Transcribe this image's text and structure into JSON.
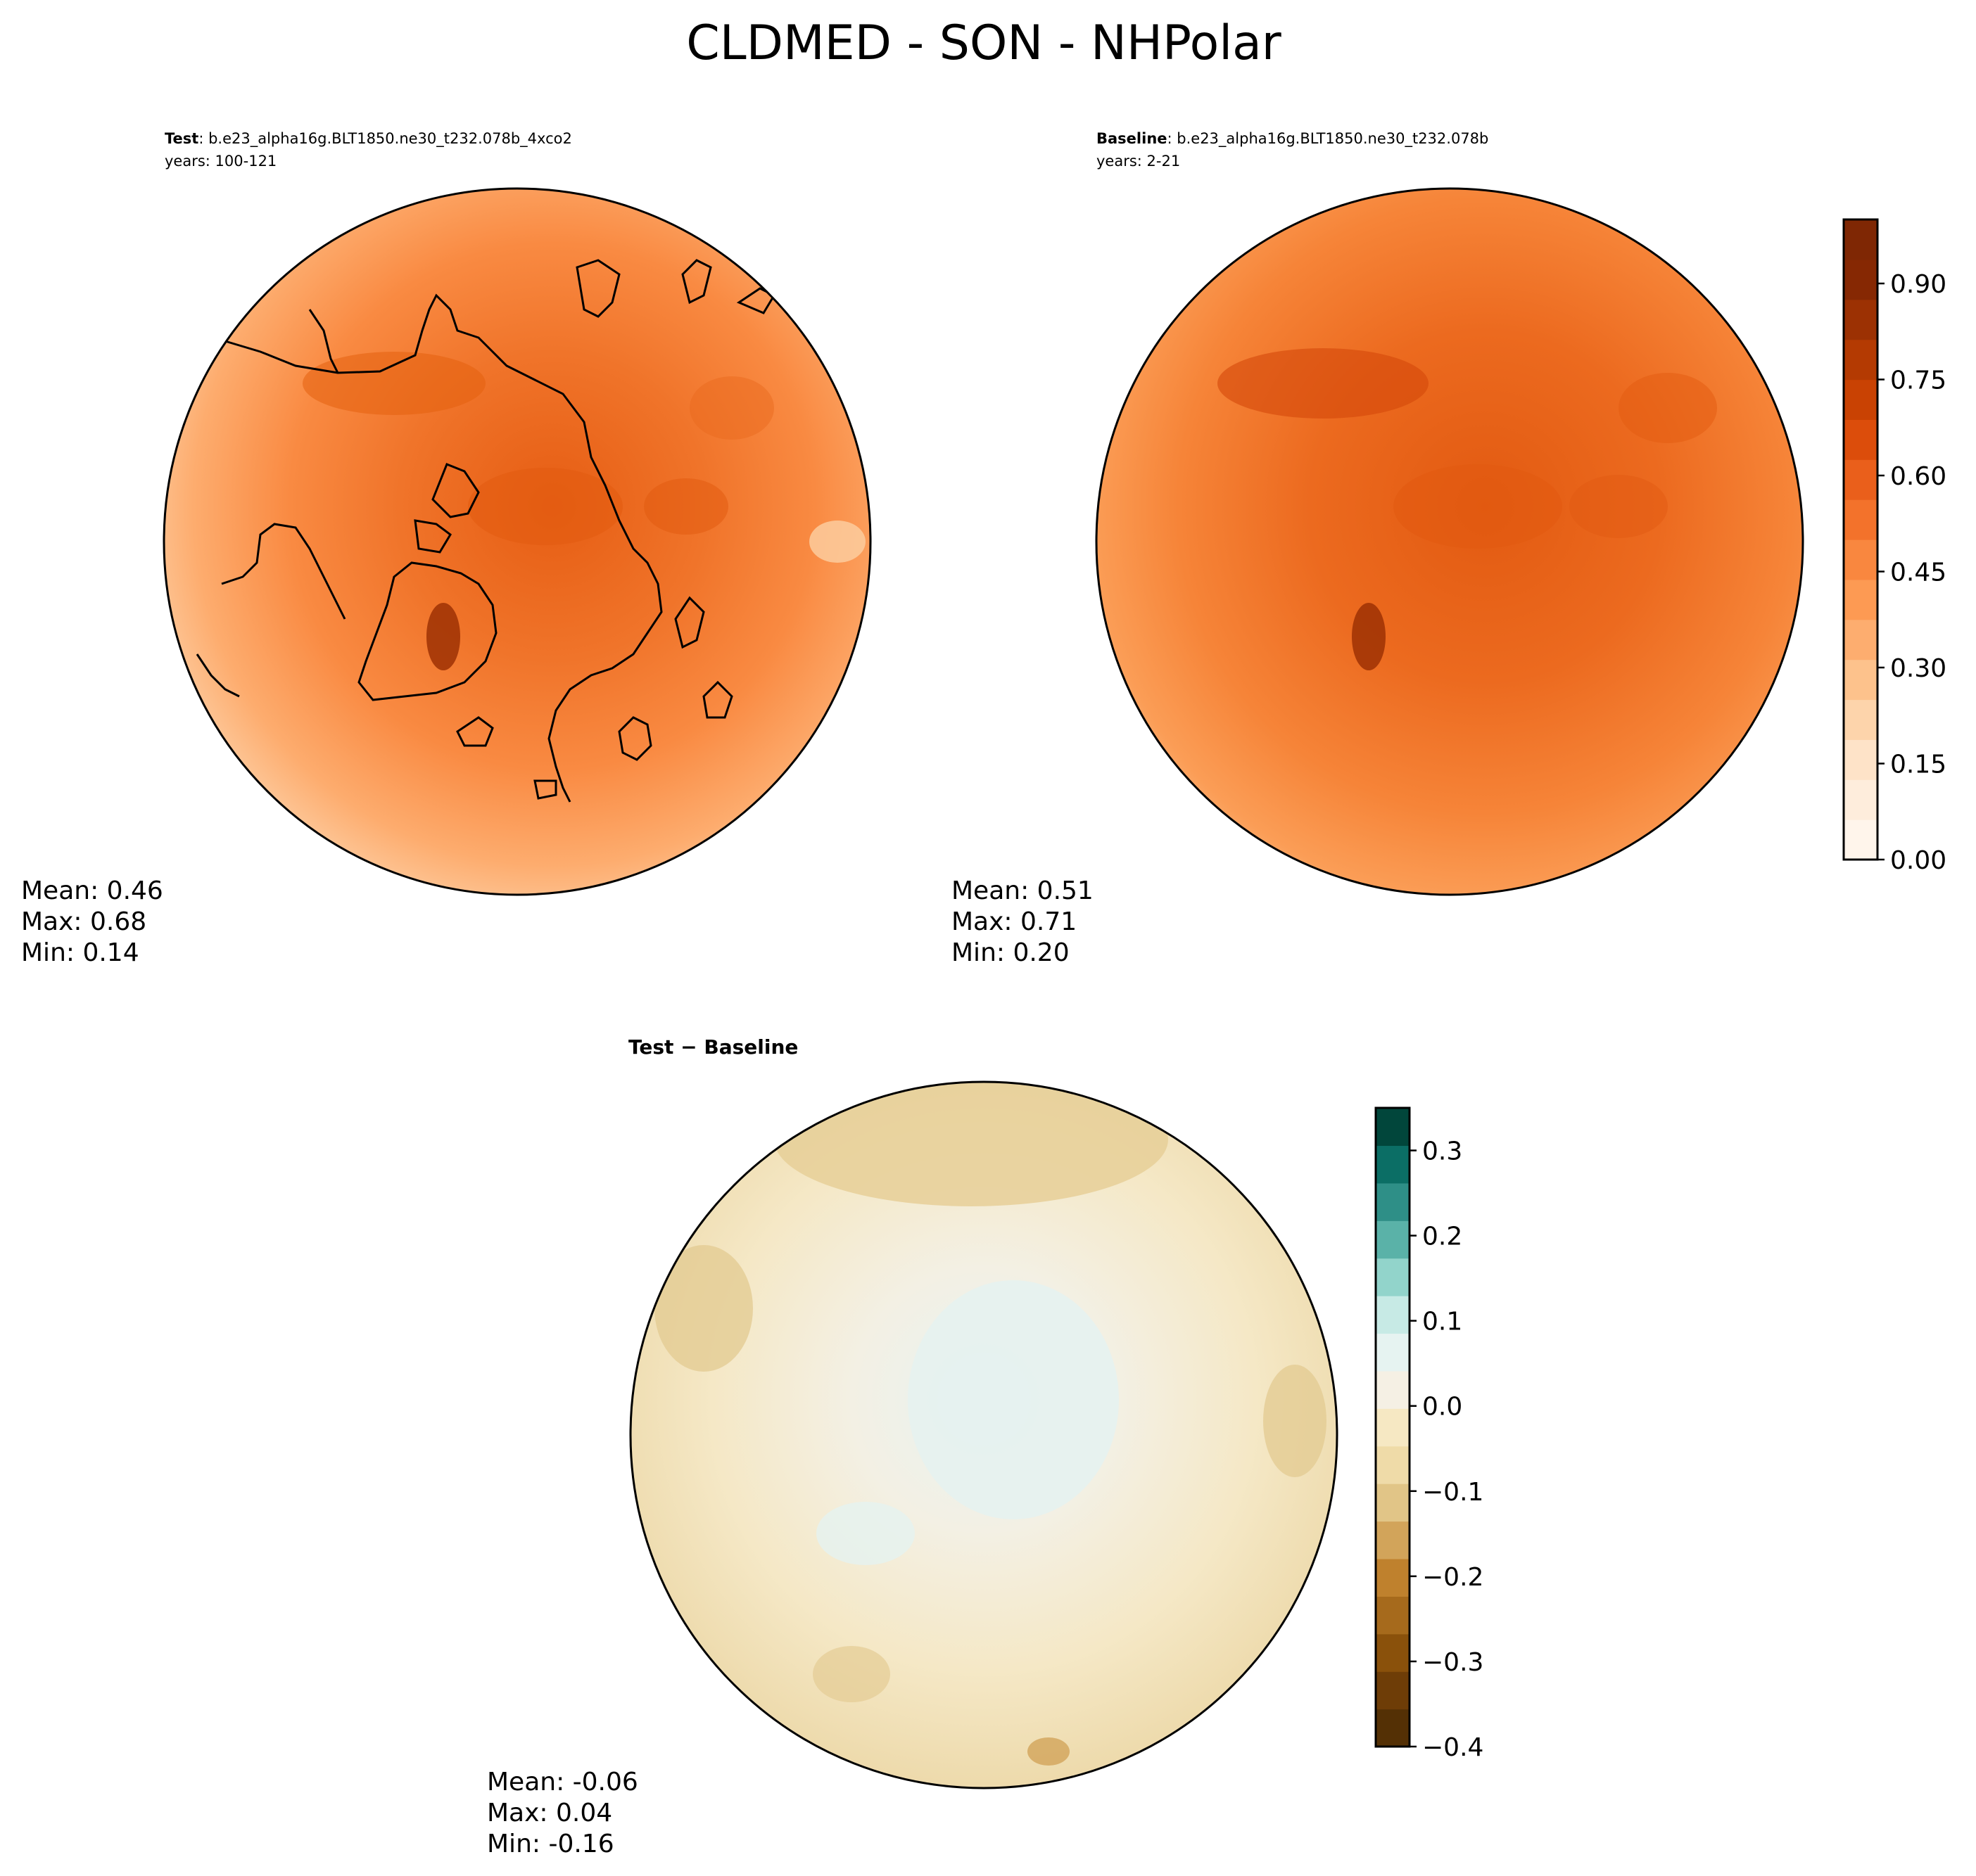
{
  "title": "CLDMED - SON - NHPolar",
  "panels": {
    "test": {
      "label_bold": "Test",
      "case": ": b.e23_alpha16g.BLT1850.ne30_t232.078b_4xco2",
      "years": "years: 100-121",
      "stats": {
        "mean": "Mean:  0.46",
        "max": "Max:  0.68",
        "min": "Min:  0.14"
      }
    },
    "baseline": {
      "label_bold": "Baseline",
      "case": ": b.e23_alpha16g.BLT1850.ne30_t232.078b",
      "years": "years: 2-21",
      "stats": {
        "mean": "Mean:  0.51",
        "max": "Max:  0.71",
        "min": "Min:  0.20"
      }
    },
    "diff": {
      "title": "Test − Baseline",
      "stats": {
        "mean": "Mean: -0.06",
        "max": "Max:  0.04",
        "min": "Min: -0.16"
      }
    }
  },
  "colorbars": {
    "main": {
      "ticks": [
        "0.00",
        "0.15",
        "0.30",
        "0.45",
        "0.60",
        "0.75",
        "0.90"
      ],
      "range": [
        0,
        1.0
      ],
      "colors": [
        "#fff5eb",
        "#feeddc",
        "#fee3c8",
        "#fdd4ab",
        "#fdc28c",
        "#fdad6f",
        "#fd9a53",
        "#f9873f",
        "#f3722b",
        "#ea5f1b",
        "#dc4d0b",
        "#c94203",
        "#b43a02",
        "#9c3103",
        "#862803",
        "#7f2704"
      ]
    },
    "diff": {
      "ticks": [
        "0.3",
        "0.2",
        "0.1",
        "0.0",
        "−0.1",
        "−0.2",
        "−0.3",
        "−0.4"
      ],
      "tick_values": [
        0.3,
        0.2,
        0.1,
        0.0,
        -0.1,
        -0.2,
        -0.3,
        -0.4
      ],
      "range": [
        -0.4,
        0.35
      ],
      "colors": [
        "#543005",
        "#6e3d07",
        "#8a510b",
        "#a66a1c",
        "#bf812d",
        "#d2a45a",
        "#e1c587",
        "#efdba8",
        "#f6e8c3",
        "#f5f0e4",
        "#e6f3f1",
        "#c7eae5",
        "#92d4cb",
        "#5ab2a8",
        "#2e8f87",
        "#0b6e65",
        "#01463b"
      ]
    }
  }
}
